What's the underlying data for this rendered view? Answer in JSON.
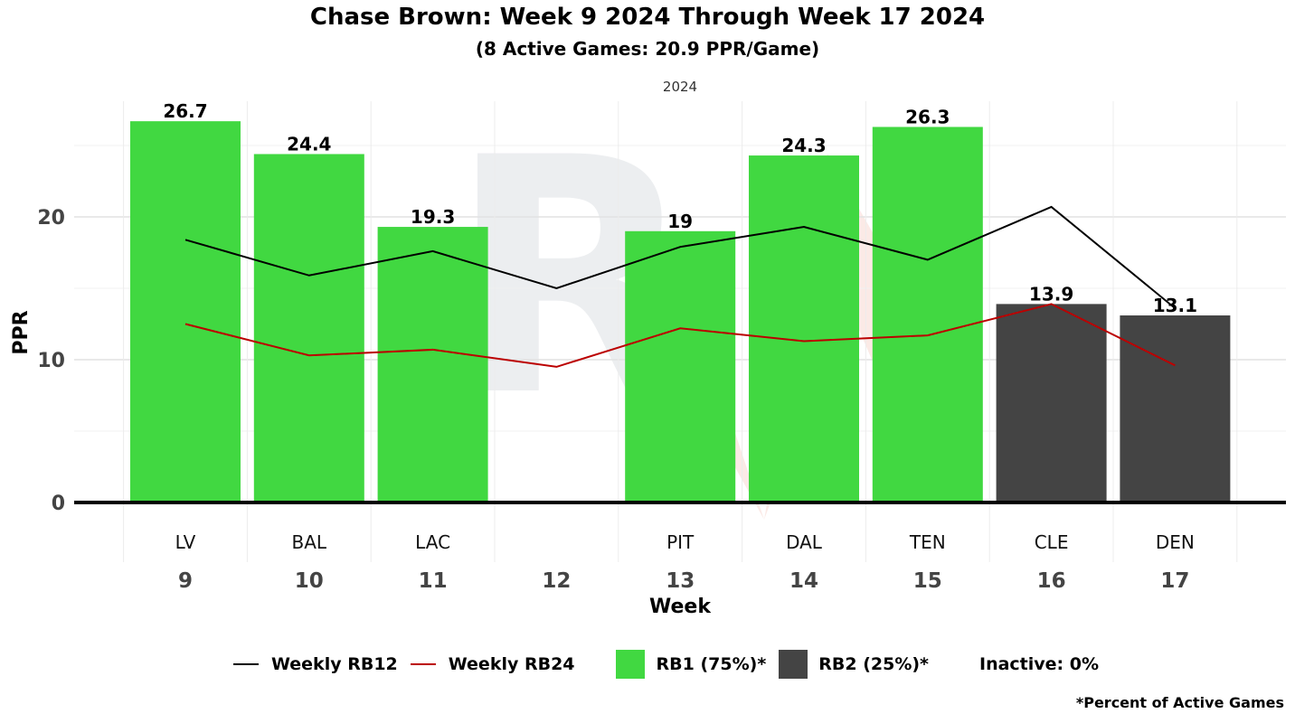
{
  "title": "Chase Brown: Week 9 2024 Through Week 17 2024",
  "subtitle": "(8 Active Games: 20.9 PPR/Game)",
  "footnote": "*Percent of Active Games",
  "colors": {
    "rb1": "#41d841",
    "rb2": "#444444",
    "rb12_line": "#000000",
    "rb24_line": "#bb0000",
    "grid": "#e6e6e6",
    "watermark": "#eceef0"
  },
  "legend": {
    "rb12": "Weekly RB12",
    "rb24": "Weekly RB24",
    "rb1": "RB1 (75%)*",
    "rb2": "RB2 (25%)*",
    "inactive": "Inactive: 0%"
  },
  "chart_data": {
    "type": "bar",
    "facet_label": "2024",
    "xlabel": "Week",
    "ylabel": "PPR",
    "ylim": [
      0,
      28
    ],
    "yticks": [
      0,
      10,
      20
    ],
    "grid": true,
    "legend_position": "bottom",
    "weeks": [
      "9",
      "10",
      "11",
      "12",
      "13",
      "14",
      "15",
      "16",
      "17"
    ],
    "opponents": [
      "LV",
      "BAL",
      "LAC",
      "",
      "PIT",
      "DAL",
      "TEN",
      "CLE",
      "DEN"
    ],
    "series": [
      {
        "name": "PPR",
        "values": [
          26.7,
          24.4,
          19.3,
          null,
          19,
          24.3,
          26.3,
          13.9,
          13.1
        ],
        "value_labels": [
          "26.7",
          "24.4",
          "19.3",
          "",
          "19",
          "24.3",
          "26.3",
          "13.9",
          "13.1"
        ],
        "tier": [
          "RB1",
          "RB1",
          "RB1",
          null,
          "RB1",
          "RB1",
          "RB1",
          "RB2",
          "RB2"
        ]
      },
      {
        "name": "Weekly RB12",
        "values": [
          18.4,
          15.9,
          17.6,
          15.0,
          17.9,
          19.3,
          17.0,
          20.7,
          13.6
        ]
      },
      {
        "name": "Weekly RB24",
        "values": [
          12.5,
          10.3,
          10.7,
          9.5,
          12.2,
          11.3,
          11.7,
          13.9,
          9.6
        ]
      }
    ]
  }
}
